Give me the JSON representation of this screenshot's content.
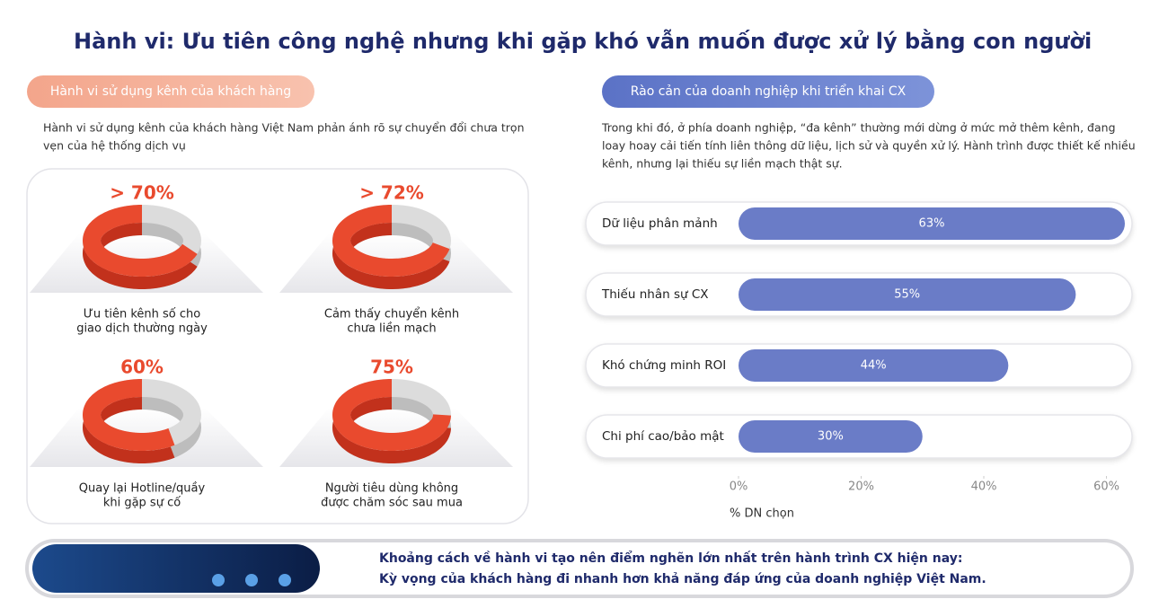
{
  "title": "Hành vi: Ưu tiên công nghệ nhưng khi gặp khó vẫn muốn được xử lý bằng con người",
  "left": {
    "heading": "Hành vi sử dụng kênh của khách hàng",
    "paragraph": [
      "Hành vi sử dụng kênh của khách hàng Việt Nam phản ánh rõ sự chuyển đổi chưa trọn",
      "vẹn của hệ thống dịch vụ"
    ],
    "donuts": {
      "values": [
        70,
        72,
        60,
        75
      ],
      "value_labels": [
        "> 70%",
        "> 72%",
        "60%",
        "75%"
      ],
      "captions": [
        [
          "Ưu tiên kênh số cho",
          "giao dịch thường ngày"
        ],
        [
          "Cảm thấy chuyển kênh",
          "chưa liền mạch"
        ],
        [
          "Quay lại Hotline/quầy",
          "khi gặp sự cố"
        ],
        [
          "Người tiêu dùng không",
          "được chăm sóc sau mua"
        ]
      ]
    }
  },
  "right": {
    "heading": "Rào cản của doanh nghiệp khi triển khai CX",
    "paragraph": [
      "Trong khi đó, ở phía doanh nghiệp, “đa kênh” thường mới dừng ở mức mở thêm kênh, đang",
      "loay hoay cải tiến tính liên thông dữ liệu, lịch sử và quyền xử lý. Hành trình được thiết kế nhiều",
      "kênh, nhưng lại thiếu sự liền mạch thật sự."
    ]
  },
  "chart_data": {
    "type": "bar",
    "orientation": "horizontal",
    "categories": [
      "Dữ liệu phân mảnh",
      "Thiếu nhân sự CX",
      "Khó chứng minh ROI",
      "Chi phí cao/bảo mật"
    ],
    "values": [
      63,
      55,
      44,
      30
    ],
    "value_labels": [
      "63%",
      "55%",
      "44%",
      "30%"
    ],
    "color": "#6a7cc7",
    "xlim": [
      0,
      63
    ],
    "xticks": [
      {
        "value": 0,
        "label": "0%"
      },
      {
        "value": 20,
        "label": "20%"
      },
      {
        "value": 40,
        "label": "40%"
      },
      {
        "value": 60,
        "label": "60%"
      }
    ],
    "xlabel": "% DN chọn"
  },
  "banner": [
    "Khoảng cách về hành vi tạo nên điểm nghẽn lớn nhất trên hành trình CX hiện nay:",
    "Kỳ vọng của khách hàng đi nhanh hơn khả năng đáp ứng của doanh nghiệp Việt Nam."
  ]
}
